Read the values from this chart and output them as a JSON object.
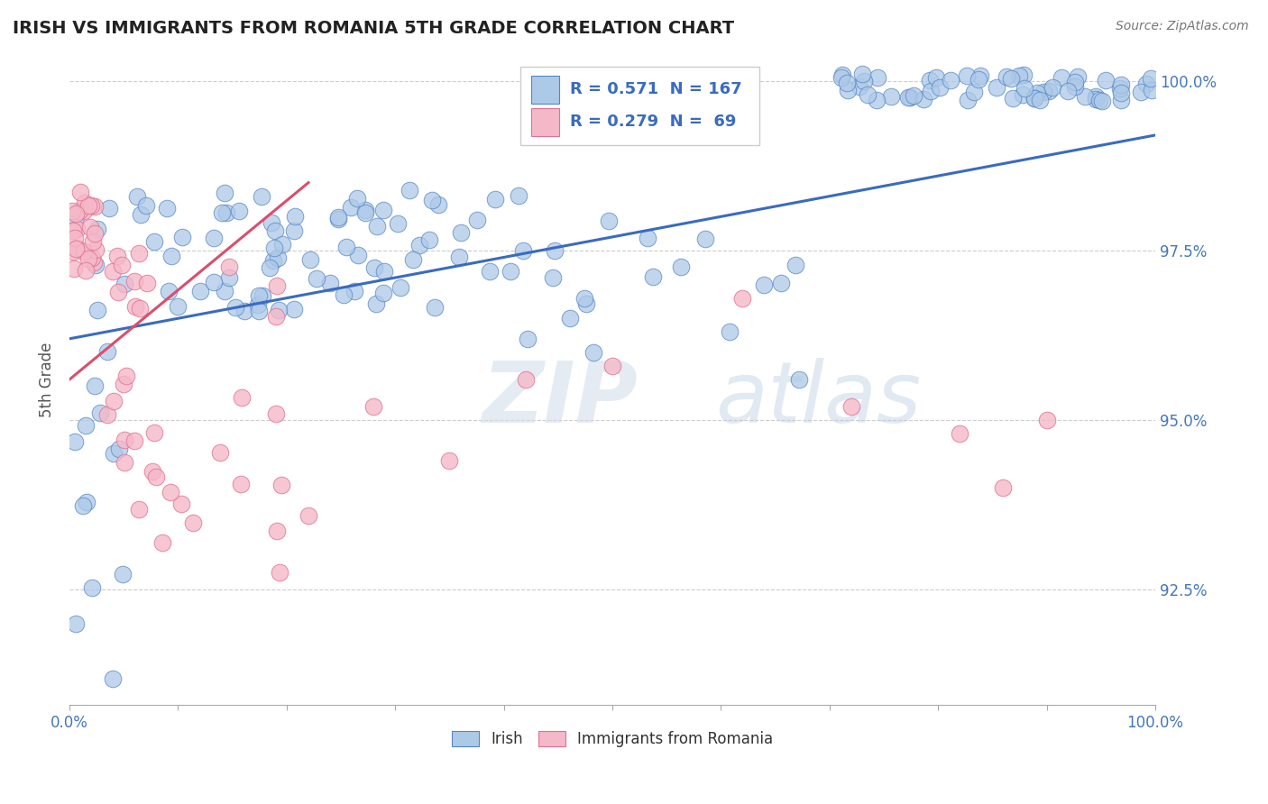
{
  "title": "IRISH VS IMMIGRANTS FROM ROMANIA 5TH GRADE CORRELATION CHART",
  "source": "Source: ZipAtlas.com",
  "ylabel": "5th Grade",
  "legend_r_blue": "R = 0.571",
  "legend_n_blue": "N = 167",
  "legend_r_pink": "R = 0.279",
  "legend_n_pink": "N =  69",
  "legend_label_blue": "Irish",
  "legend_label_pink": "Immigrants from Romania",
  "blue_color": "#adc9e8",
  "blue_edge_color": "#5585c5",
  "blue_line_color": "#3a6bbf",
  "pink_color": "#f5b8c8",
  "pink_edge_color": "#e07090",
  "pink_line_color": "#d94f6e",
  "watermark_zip": "ZIP",
  "watermark_atlas": "atlas",
  "xlim": [
    0.0,
    1.0
  ],
  "ylim": [
    0.908,
    1.004
  ],
  "yticks": [
    0.925,
    0.95,
    0.975,
    1.0
  ],
  "ytick_labels": [
    "92.5%",
    "95.0%",
    "97.5%",
    "100.0%"
  ],
  "blue_trend": [
    0.0,
    1.0,
    0.962,
    0.992
  ],
  "pink_trend": [
    0.0,
    0.22,
    0.956,
    0.985
  ]
}
